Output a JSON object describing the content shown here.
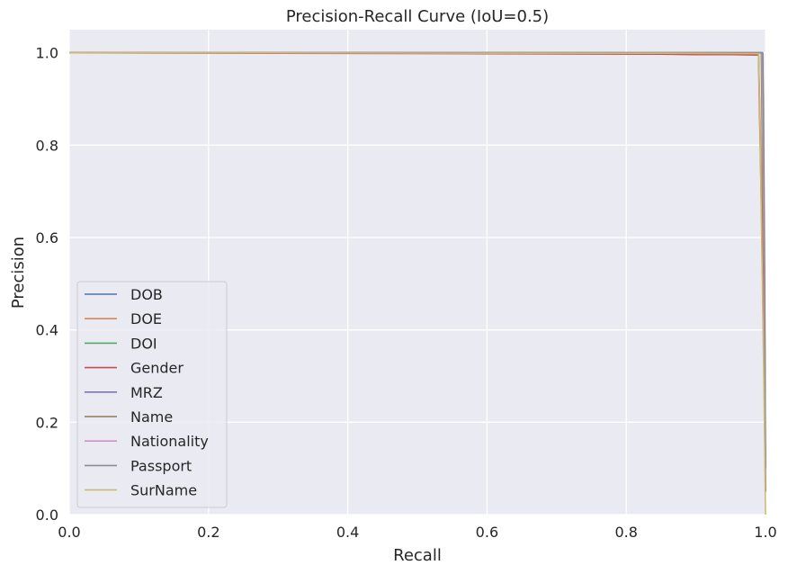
{
  "chart_data": {
    "type": "line",
    "title": "Precision-Recall Curve (IoU=0.5)",
    "xlabel": "Recall",
    "ylabel": "Precision",
    "xlim": [
      0.0,
      1.0
    ],
    "ylim": [
      0.0,
      1.05
    ],
    "xticks": [
      "0.0",
      "0.2",
      "0.4",
      "0.6",
      "0.8",
      "1.0"
    ],
    "yticks": [
      "0.0",
      "0.2",
      "0.4",
      "0.6",
      "0.8",
      "1.0"
    ],
    "grid": true,
    "legend_position": "lower-left",
    "series": [
      {
        "name": "DOB",
        "color": "#4c72b0",
        "x": [
          0.0,
          0.995,
          0.996,
          0.997,
          0.998,
          0.999,
          1.0
        ],
        "y": [
          1.0,
          1.0,
          0.9,
          0.75,
          0.55,
          0.3,
          0.05
        ]
      },
      {
        "name": "DOE",
        "color": "#dd8452",
        "x": [
          0.0,
          0.5,
          0.99,
          0.993,
          0.996,
          0.998,
          1.0
        ],
        "y": [
          1.0,
          0.999,
          0.998,
          0.8,
          0.6,
          0.4,
          0.1
        ]
      },
      {
        "name": "DOI",
        "color": "#55a868",
        "x": [
          0.0,
          0.994,
          0.995,
          0.997,
          0.998,
          1.0
        ],
        "y": [
          1.0,
          1.0,
          0.85,
          0.6,
          0.35,
          0.1
        ]
      },
      {
        "name": "Gender",
        "color": "#c44e52",
        "x": [
          0.0,
          0.3,
          0.6,
          0.85,
          0.9,
          0.95,
          0.99,
          0.991,
          0.995,
          0.998,
          1.0
        ],
        "y": [
          1.0,
          0.999,
          0.998,
          0.997,
          0.996,
          0.996,
          0.995,
          0.9,
          0.6,
          0.3,
          0.05
        ]
      },
      {
        "name": "MRZ",
        "color": "#8172b3",
        "x": [
          0.0,
          0.996,
          0.997,
          0.999,
          1.0
        ],
        "y": [
          1.0,
          1.0,
          0.8,
          0.4,
          0.1
        ]
      },
      {
        "name": "Name",
        "color": "#937860",
        "x": [
          0.0,
          0.995,
          0.996,
          0.998,
          1.0
        ],
        "y": [
          1.0,
          1.0,
          0.8,
          0.5,
          0.1
        ]
      },
      {
        "name": "Nationality",
        "color": "#da8bc3",
        "x": [
          0.0,
          0.995,
          0.996,
          0.998,
          1.0
        ],
        "y": [
          1.0,
          1.0,
          0.85,
          0.55,
          0.1
        ]
      },
      {
        "name": "Passport",
        "color": "#8c8c8c",
        "x": [
          0.0,
          0.996,
          0.997,
          0.999,
          1.0
        ],
        "y": [
          1.0,
          1.0,
          0.9,
          0.5,
          0.1
        ]
      },
      {
        "name": "SurName",
        "color": "#ccb974",
        "x": [
          0.0,
          0.25,
          0.6,
          0.85,
          0.99,
          0.992,
          0.994,
          0.996,
          0.998,
          1.0
        ],
        "y": [
          1.0,
          1.0,
          0.999,
          0.999,
          0.998,
          0.85,
          0.65,
          0.45,
          0.25,
          0.0
        ]
      }
    ]
  }
}
